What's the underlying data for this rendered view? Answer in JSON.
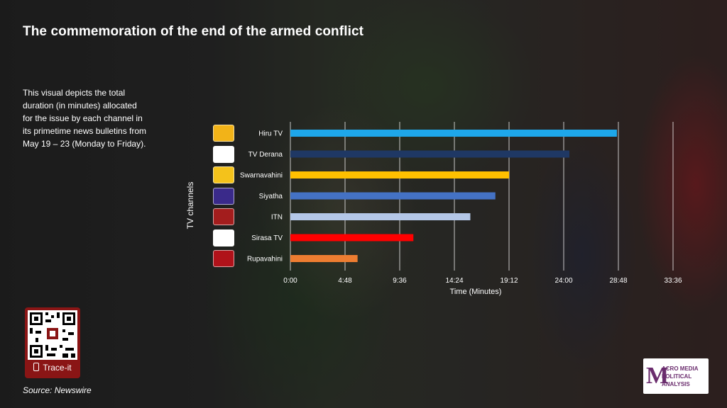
{
  "title": "The commemoration of the end of the armed conflict",
  "description": "This visual depicts the total duration  (in minutes) allocated for the issue by each channel in its primetime news bulletins from May 19 – 23  (Monday to Friday).",
  "trace_label": "Trace-it",
  "source": "Source: Newswire",
  "logo_text": [
    "ACRO MEDIA",
    "POLITICAL",
    "ANALYSIS"
  ],
  "chart_data": {
    "type": "bar",
    "orientation": "horizontal",
    "categories": [
      "Hiru TV",
      "TV Derana",
      "Swarnavahini",
      "Siyatha",
      "ITN",
      "Sirasa TV",
      "Rupavahini"
    ],
    "values_minutes": [
      28.67,
      24.5,
      19.2,
      18.0,
      15.8,
      10.8,
      5.9
    ],
    "bar_colors": [
      "#1ea7ea",
      "#1f3864",
      "#ffc000",
      "#4472c4",
      "#b4c7e7",
      "#ff0000",
      "#ed7d31"
    ],
    "channel_icon_colors": [
      "#f2b318",
      "#ffffff",
      "#f4c21b",
      "#3a2a8a",
      "#a31d1d",
      "#ffffff",
      "#b0121a"
    ],
    "xlabel": "Time (Minutes)",
    "ylabel": "TV channels",
    "x_ticks": [
      "0:00",
      "4:48",
      "9:36",
      "14:24",
      "19:12",
      "24:00",
      "28:48",
      "33:36"
    ],
    "xlim": [
      0,
      36
    ],
    "grid": "vertical",
    "legend": "none"
  }
}
